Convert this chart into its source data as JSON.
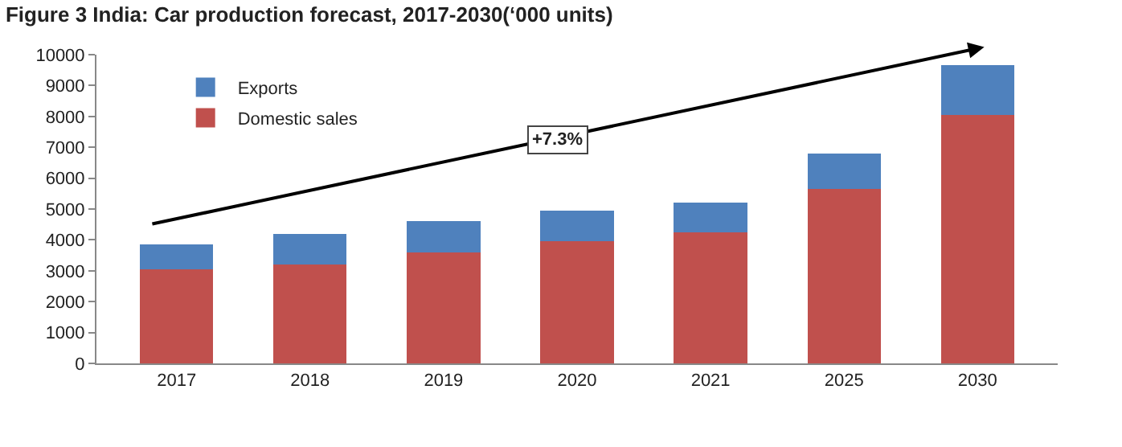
{
  "chart_data": {
    "type": "bar",
    "stacked": true,
    "title": "Figure 3 India: Car production forecast, 2017-2030(‘000 units)",
    "categories": [
      "2017",
      "2018",
      "2019",
      "2020",
      "2021",
      "2025",
      "2030"
    ],
    "series": [
      {
        "name": "Domestic sales",
        "color": "#c0504d",
        "values": [
          3050,
          3200,
          3600,
          3950,
          4250,
          5650,
          8050
        ]
      },
      {
        "name": "Exports",
        "color": "#4f81bd",
        "values": [
          800,
          1000,
          1000,
          1000,
          950,
          1150,
          1600
        ]
      }
    ],
    "ylim": [
      0,
      10000
    ],
    "yticks": [
      0,
      1000,
      2000,
      3000,
      4000,
      5000,
      6000,
      7000,
      8000,
      9000,
      10000
    ],
    "legend": "top left",
    "annotations": [
      "+7.3%"
    ]
  }
}
